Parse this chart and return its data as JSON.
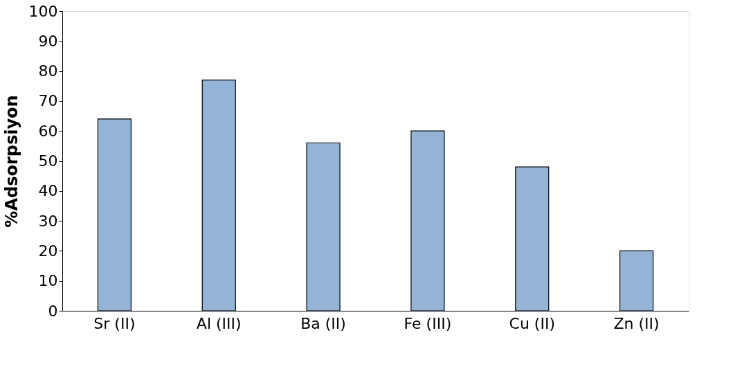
{
  "chart_data": {
    "type": "bar",
    "ylabel": "%Adsorpsiyon",
    "categories": [
      "Sr (II)",
      "Al (III)",
      "Ba (II)",
      "Fe (III)",
      "Cu (II)",
      "Zn (II)"
    ],
    "values": [
      64,
      77,
      56,
      60,
      48,
      20
    ],
    "color": "#95b3d7",
    "ylim": [
      0,
      100
    ],
    "yticks": [
      0,
      10,
      20,
      30,
      40,
      50,
      60,
      70,
      80,
      90,
      100
    ],
    "grid": false
  }
}
